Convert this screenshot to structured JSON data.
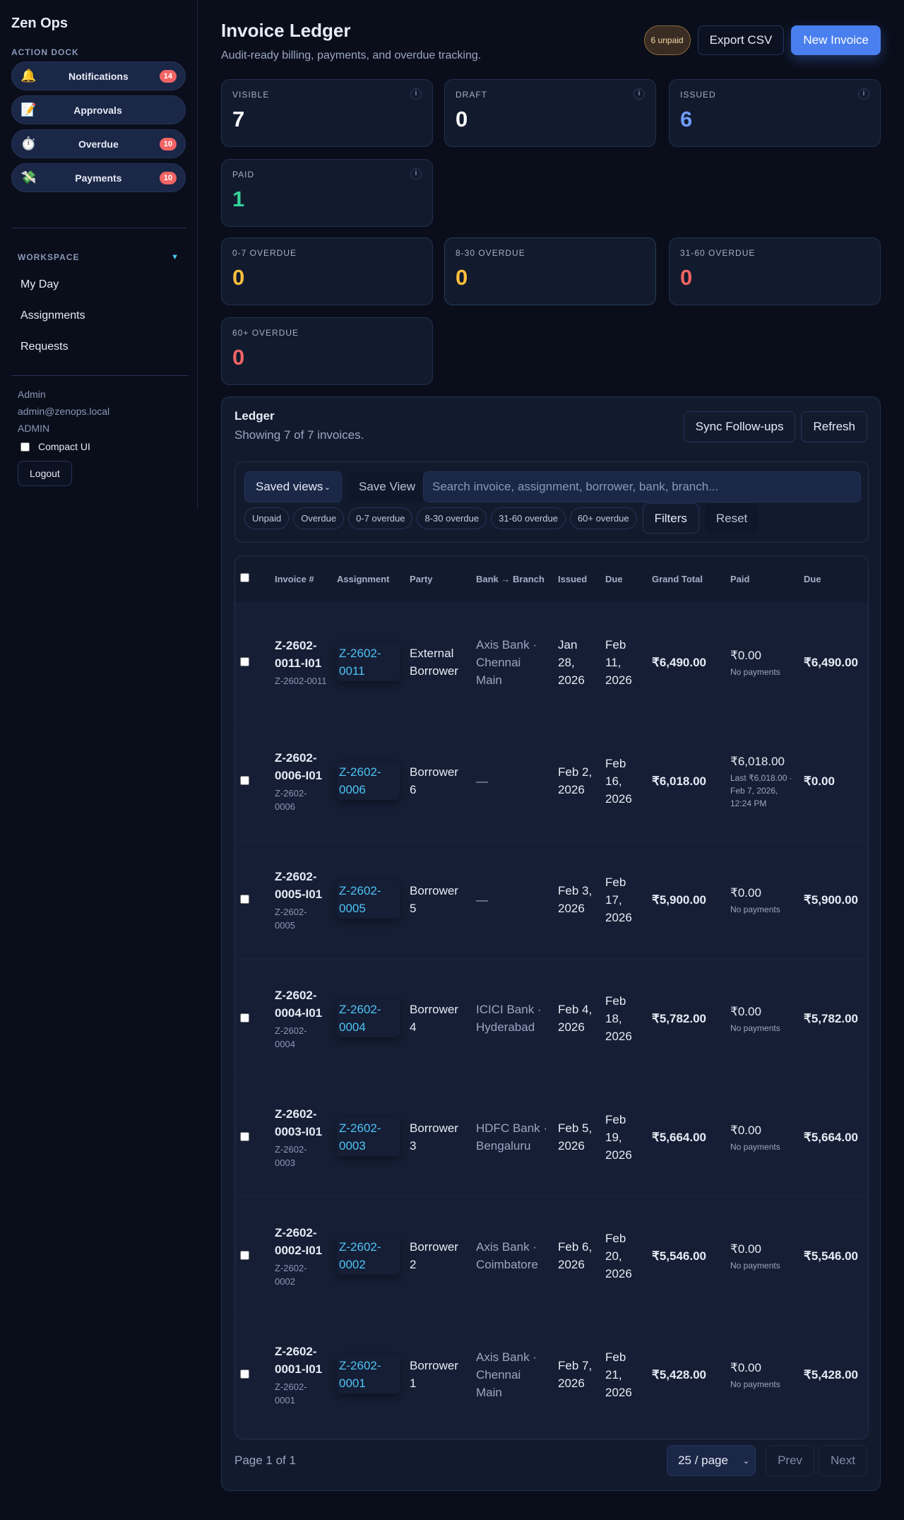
{
  "sidebar": {
    "brand": "Zen Ops",
    "action_dock_label": "ACTION DOCK",
    "dock": [
      {
        "icon": "bell-icon",
        "glyph": "🔔",
        "label": "Notifications",
        "badge": "14"
      },
      {
        "icon": "memo-icon",
        "glyph": "📝",
        "label": "Approvals",
        "badge": ""
      },
      {
        "icon": "stopwatch-icon",
        "glyph": "⏱️",
        "label": "Overdue",
        "badge": "10"
      },
      {
        "icon": "money-wings-icon",
        "glyph": "💸",
        "label": "Payments",
        "badge": "10"
      }
    ],
    "workspace_label": "WORKSPACE",
    "nav": [
      "My Day",
      "Assignments",
      "Requests"
    ],
    "user": {
      "name": "Admin",
      "email": "admin@zenops.local",
      "role": "ADMIN"
    },
    "compact_label": "Compact UI",
    "logout": "Logout"
  },
  "header": {
    "title": "Invoice Ledger",
    "subtitle": "Audit-ready billing, payments, and overdue tracking.",
    "unpaid_pill": "6 unpaid",
    "export": "Export CSV",
    "new_invoice": "New Invoice"
  },
  "stats": [
    {
      "label": "VISIBLE",
      "value": "7",
      "color": "#ffffff",
      "info": "i"
    },
    {
      "label": "DRAFT",
      "value": "0",
      "color": "#ffffff",
      "info": "i"
    },
    {
      "label": "ISSUED",
      "value": "6",
      "color": "#6f9cf5",
      "info": "i"
    },
    {
      "label": "PAID",
      "value": "1",
      "color": "#34d399",
      "info": "i"
    },
    {
      "label": "0-7 OVERDUE",
      "value": "0",
      "color": "#fbbf3c"
    },
    {
      "label": "8-30 OVERDUE",
      "value": "0",
      "color": "#fbbf3c"
    },
    {
      "label": "31-60 OVERDUE",
      "value": "0",
      "color": "#f26464"
    },
    {
      "label": "60+ OVERDUE",
      "value": "0",
      "color": "#f26464"
    }
  ],
  "ledger": {
    "title": "Ledger",
    "summary": "Showing 7 of 7 invoices.",
    "sync": "Sync Follow-ups",
    "refresh": "Refresh",
    "saved_views": "Saved views",
    "save_view": "Save View",
    "search_placeholder": "Search invoice, assignment, borrower, bank, branch...",
    "chips": [
      "Unpaid",
      "Overdue",
      "0-7 overdue",
      "8-30 overdue",
      "31-60 overdue",
      "60+ overdue"
    ],
    "filters": "Filters",
    "reset": "Reset",
    "columns": [
      "Invoice #",
      "Assignment",
      "Party",
      "Bank → Branch",
      "Issued",
      "Due",
      "Grand Total",
      "Paid",
      "Due"
    ],
    "rows": [
      {
        "invoice": "Z-2602-0011-I01",
        "sub": "Z-2602-0011",
        "assignment": "Z-2602-0011",
        "party": "External Borrower",
        "bank": "Axis Bank · Chennai Main",
        "issued": "Jan 28, 2026",
        "due": "Feb 11, 2026",
        "total": "₹6,490.00",
        "paid": "₹0.00",
        "paid_note": "No payments",
        "balance": "₹6,490.00"
      },
      {
        "invoice": "Z-2602-0006-I01",
        "sub": "Z-2602-0006",
        "assignment": "Z-2602-0006",
        "party": "Borrower 6",
        "bank": "—",
        "issued": "Feb 2, 2026",
        "due": "Feb 16, 2026",
        "total": "₹6,018.00",
        "paid": "₹6,018.00",
        "paid_note": "Last ₹6,018.00 · Feb 7, 2026, 12:24 PM",
        "balance": "₹0.00"
      },
      {
        "invoice": "Z-2602-0005-I01",
        "sub": "Z-2602-0005",
        "assignment": "Z-2602-0005",
        "party": "Borrower 5",
        "bank": "—",
        "issued": "Feb 3, 2026",
        "due": "Feb 17, 2026",
        "total": "₹5,900.00",
        "paid": "₹0.00",
        "paid_note": "No payments",
        "balance": "₹5,900.00"
      },
      {
        "invoice": "Z-2602-0004-I01",
        "sub": "Z-2602-0004",
        "assignment": "Z-2602-0004",
        "party": "Borrower 4",
        "bank": "ICICI Bank · Hyderabad",
        "issued": "Feb 4, 2026",
        "due": "Feb 18, 2026",
        "total": "₹5,782.00",
        "paid": "₹0.00",
        "paid_note": "No payments",
        "balance": "₹5,782.00"
      },
      {
        "invoice": "Z-2602-0003-I01",
        "sub": "Z-2602-0003",
        "assignment": "Z-2602-0003",
        "party": "Borrower 3",
        "bank": "HDFC Bank · Bengaluru",
        "issued": "Feb 5, 2026",
        "due": "Feb 19, 2026",
        "total": "₹5,664.00",
        "paid": "₹0.00",
        "paid_note": "No payments",
        "balance": "₹5,664.00"
      },
      {
        "invoice": "Z-2602-0002-I01",
        "sub": "Z-2602-0002",
        "assignment": "Z-2602-0002",
        "party": "Borrower 2",
        "bank": "Axis Bank · Coimbatore",
        "issued": "Feb 6, 2026",
        "due": "Feb 20, 2026",
        "total": "₹5,546.00",
        "paid": "₹0.00",
        "paid_note": "No payments",
        "balance": "₹5,546.00"
      },
      {
        "invoice": "Z-2602-0001-I01",
        "sub": "Z-2602-0001",
        "assignment": "Z-2602-0001",
        "party": "Borrower 1",
        "bank": "Axis Bank · Chennai Main",
        "issued": "Feb 7, 2026",
        "due": "Feb 21, 2026",
        "total": "₹5,428.00",
        "paid": "₹0.00",
        "paid_note": "No payments",
        "balance": "₹5,428.00"
      }
    ],
    "page_info": "Page 1 of 1",
    "page_size": "25 / page",
    "prev": "Prev",
    "next": "Next"
  }
}
